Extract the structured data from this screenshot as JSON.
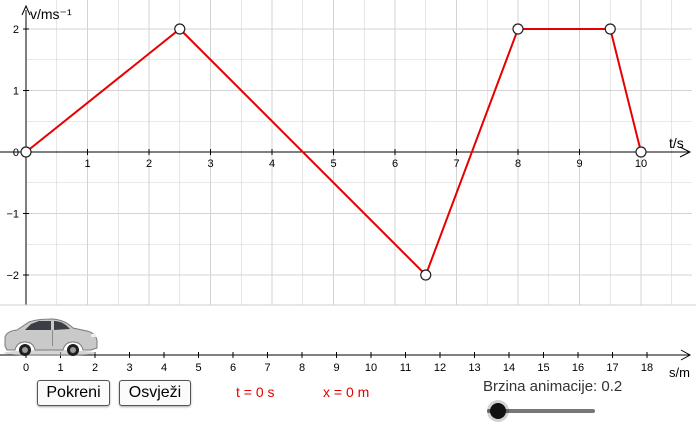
{
  "graph": {
    "y_axis_label": "v/ms⁻¹",
    "x_axis_label": "t/s",
    "x_tick_labels": [
      "1",
      "2",
      "3",
      "4",
      "5",
      "6",
      "7",
      "8",
      "9",
      "10"
    ],
    "y_tick_labels": [
      "2",
      "1",
      "0",
      "−1",
      "−2"
    ],
    "line_color": "#e60000",
    "points": [
      [
        0,
        0
      ],
      [
        2.5,
        2
      ],
      [
        6.5,
        -2
      ],
      [
        8,
        2
      ],
      [
        9.5,
        2
      ],
      [
        10,
        0
      ]
    ]
  },
  "track": {
    "axis_label": "s/m",
    "tick_labels": [
      "0",
      "1",
      "2",
      "3",
      "4",
      "5",
      "6",
      "7",
      "8",
      "9",
      "10",
      "11",
      "12",
      "13",
      "14",
      "15",
      "16",
      "17",
      "18"
    ]
  },
  "car": {
    "icon": "car-icon",
    "position_m": 0
  },
  "controls": {
    "start_label": "Pokreni",
    "refresh_label": "Osvježi",
    "time_readout": "t = 0 s",
    "position_readout": "x = 0 m",
    "speed_label": "Brzina animacije: 0.2",
    "speed_value": 0.2
  },
  "colors": {
    "accent": "#e60000",
    "grid": "#cccccc",
    "axis": "#000000"
  }
}
